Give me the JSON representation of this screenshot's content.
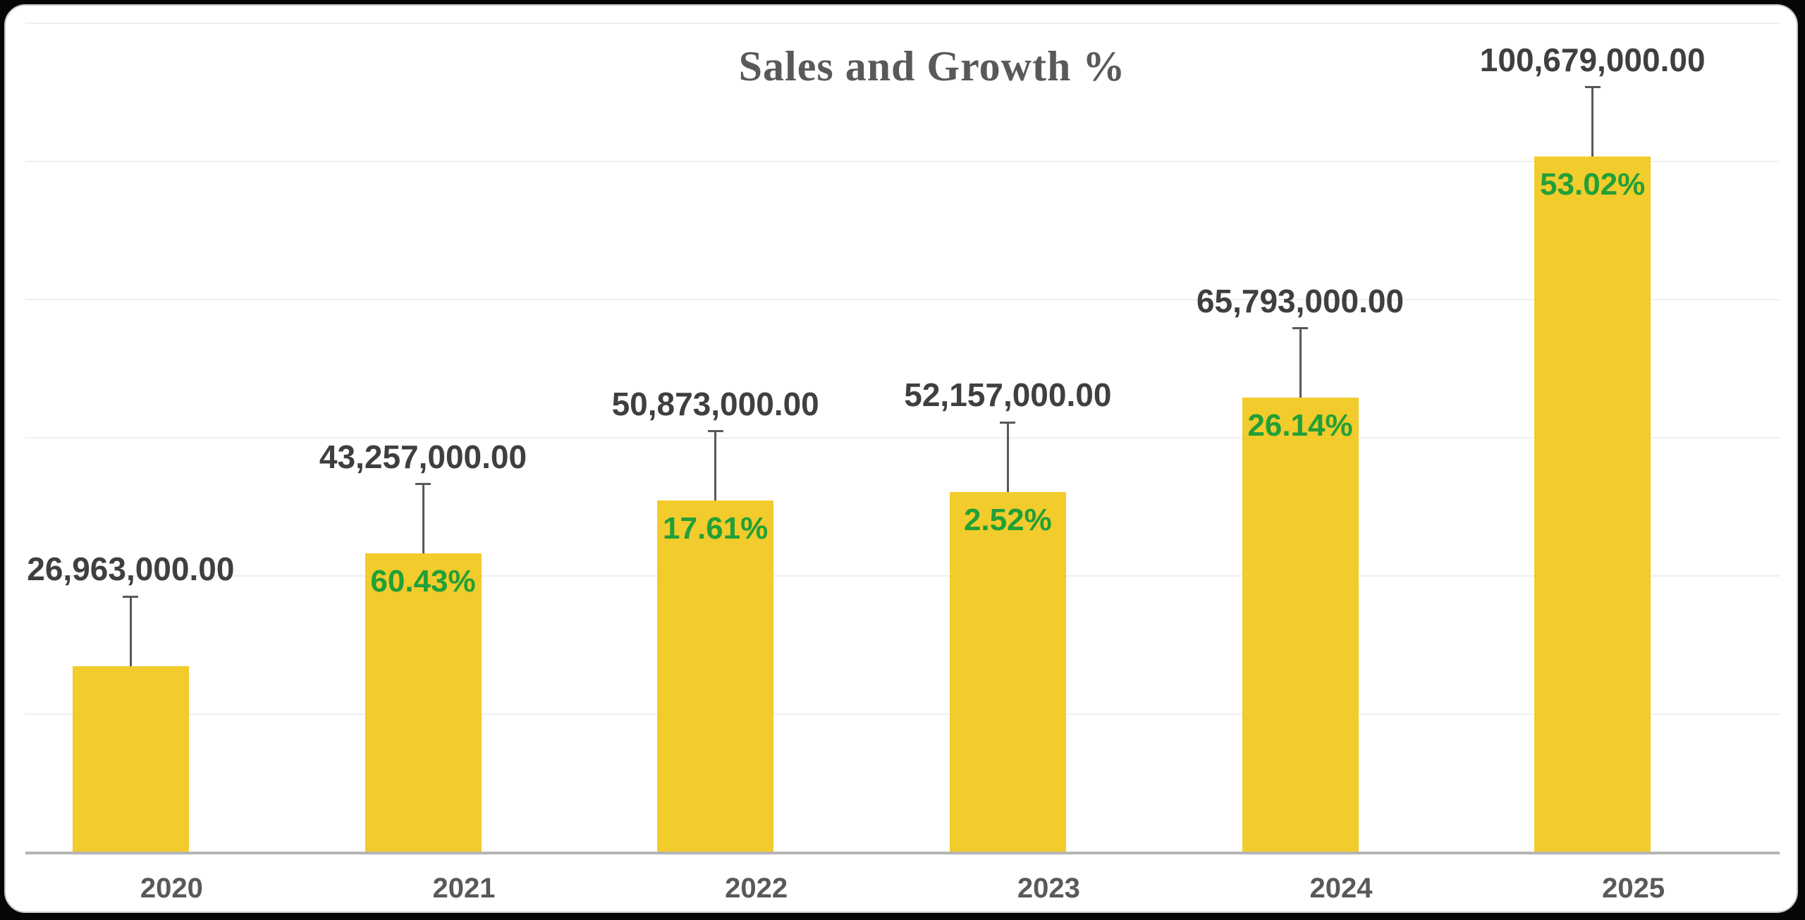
{
  "window": {
    "background": "#060606",
    "card_background": "#ffffff",
    "card_border": "#c6c6c6"
  },
  "chart_data": {
    "type": "bar",
    "title": "Sales and Growth %",
    "categories": [
      "2020",
      "2021",
      "2022",
      "2023",
      "2024",
      "2025"
    ],
    "series": [
      {
        "name": "Sales",
        "values": [
          26963000,
          43257000,
          50873000,
          52157000,
          65793000,
          100679000
        ],
        "labels": [
          "26,963,000.00",
          "43,257,000.00",
          "50,873,000.00",
          "52,157,000.00",
          "65,793,000.00",
          "100,679,000.00"
        ]
      },
      {
        "name": "Growth %",
        "values": [
          null,
          60.43,
          17.61,
          2.52,
          26.14,
          53.02
        ],
        "labels": [
          "",
          "60.43%",
          "17.61%",
          "2.52%",
          "26.14%",
          "53.02%"
        ]
      }
    ],
    "ylim": [
      0,
      120000000
    ],
    "gridline_step": 20000000,
    "grid": true,
    "legend": "none",
    "xlabel": "",
    "ylabel": ""
  },
  "theme": {
    "bar_fill": "#F2CB2C",
    "growth_label_color": "#21A038",
    "value_label_color": "#3F3F3F",
    "category_label_color": "#595959",
    "title_color": "#595959",
    "gridline_color": "#EFEFEF",
    "axis_line_color": "#B5B5B5",
    "leader_line_color": "#595959"
  }
}
